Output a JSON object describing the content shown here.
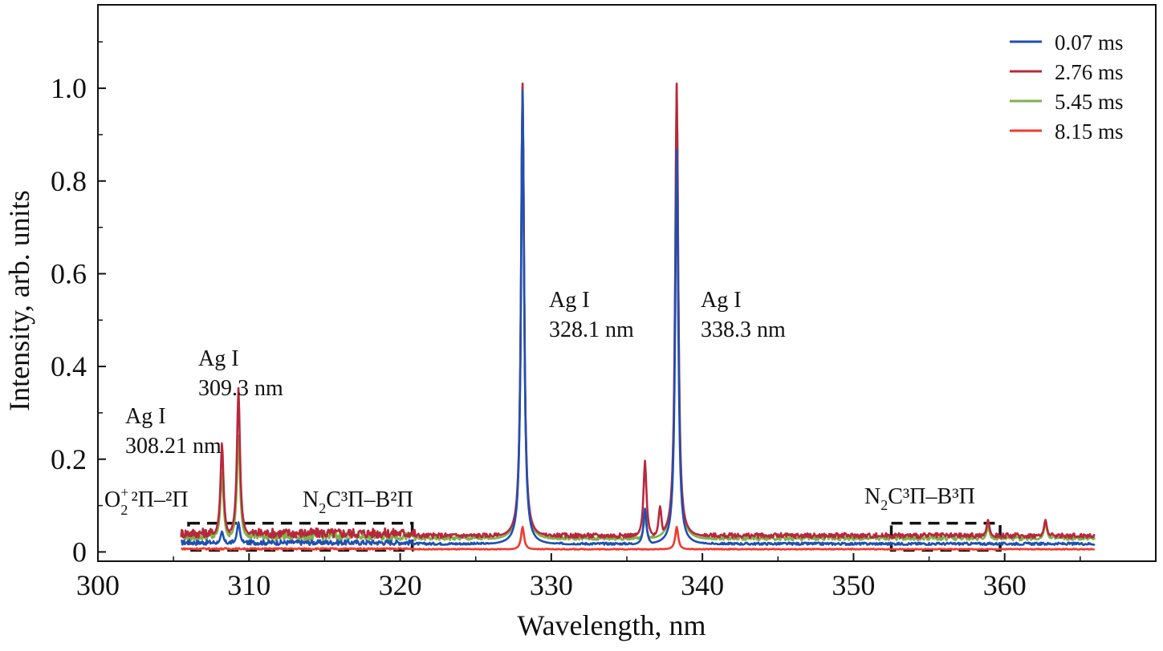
{
  "chart_data": {
    "type": "line",
    "xlabel": "Wavelength, nm",
    "ylabel": "Intensity, arb. units",
    "xlim": [
      300,
      370
    ],
    "ylim": [
      -0.02,
      1.18
    ],
    "xticks": [
      300,
      310,
      320,
      330,
      340,
      350,
      360
    ],
    "xtick_labels": [
      "300",
      "310",
      "320",
      "330",
      "340",
      "350",
      "360"
    ],
    "yticks": [
      0,
      0.2,
      0.4,
      0.6,
      0.8,
      1.0
    ],
    "ytick_labels": [
      "0",
      "0.2",
      "0.4",
      "0.6",
      "0.8",
      "1.0"
    ],
    "grid": false,
    "legend_position": "top-right",
    "series": [
      {
        "name": "0.07 ms",
        "color": "#1f4fb4",
        "peaks": [
          [
            308.21,
            0.03
          ],
          [
            309.3,
            0.05
          ],
          [
            328.1,
            1.0
          ],
          [
            336.2,
            0.08
          ],
          [
            338.3,
            0.87
          ]
        ],
        "baseline": 0.015
      },
      {
        "name": "2.76 ms",
        "color": "#b8283c",
        "peaks": [
          [
            308.21,
            0.21
          ],
          [
            309.3,
            0.33
          ],
          [
            328.1,
            1.0
          ],
          [
            336.2,
            0.17
          ],
          [
            337.2,
            0.07
          ],
          [
            338.3,
            1.0
          ],
          [
            358.9,
            0.04
          ],
          [
            362.7,
            0.04
          ]
        ],
        "baseline": 0.03
      },
      {
        "name": "5.45 ms",
        "color": "#7fb24a",
        "peaks": [
          [
            308.21,
            0.15
          ],
          [
            309.3,
            0.23
          ],
          [
            328.1,
            1.0
          ],
          [
            336.2,
            0.05
          ],
          [
            338.3,
            1.0
          ],
          [
            358.9,
            0.03
          ],
          [
            362.7,
            0.04
          ]
        ],
        "baseline": 0.025
      },
      {
        "name": "8.15 ms",
        "color": "#ee3b2e",
        "peaks": [
          [
            328.1,
            0.05
          ],
          [
            338.3,
            0.05
          ]
        ],
        "baseline": 0.005
      }
    ],
    "annotations": [
      {
        "line1": "Ag I",
        "line2": "308.21 nm"
      },
      {
        "line1": "Ag I",
        "line2": "309.3 nm"
      },
      {
        "line1": "Ag I",
        "line2": "328.1 nm"
      },
      {
        "line1": "Ag I",
        "line2": "338.3 nm"
      }
    ],
    "band_labels": [
      {
        "main": "O",
        "sub": "2",
        "sup": "+",
        "rest": "²Π–²Π"
      },
      {
        "main": "N",
        "sub": "2",
        "rest": "C³Π–B²Π"
      },
      {
        "main": "N",
        "sub": "2",
        "rest": "C³Π–B³Π"
      }
    ],
    "boxes": [
      [
        306,
        0,
        320.8,
        0.062
      ],
      [
        352.5,
        0,
        359.7,
        0.062
      ]
    ]
  }
}
